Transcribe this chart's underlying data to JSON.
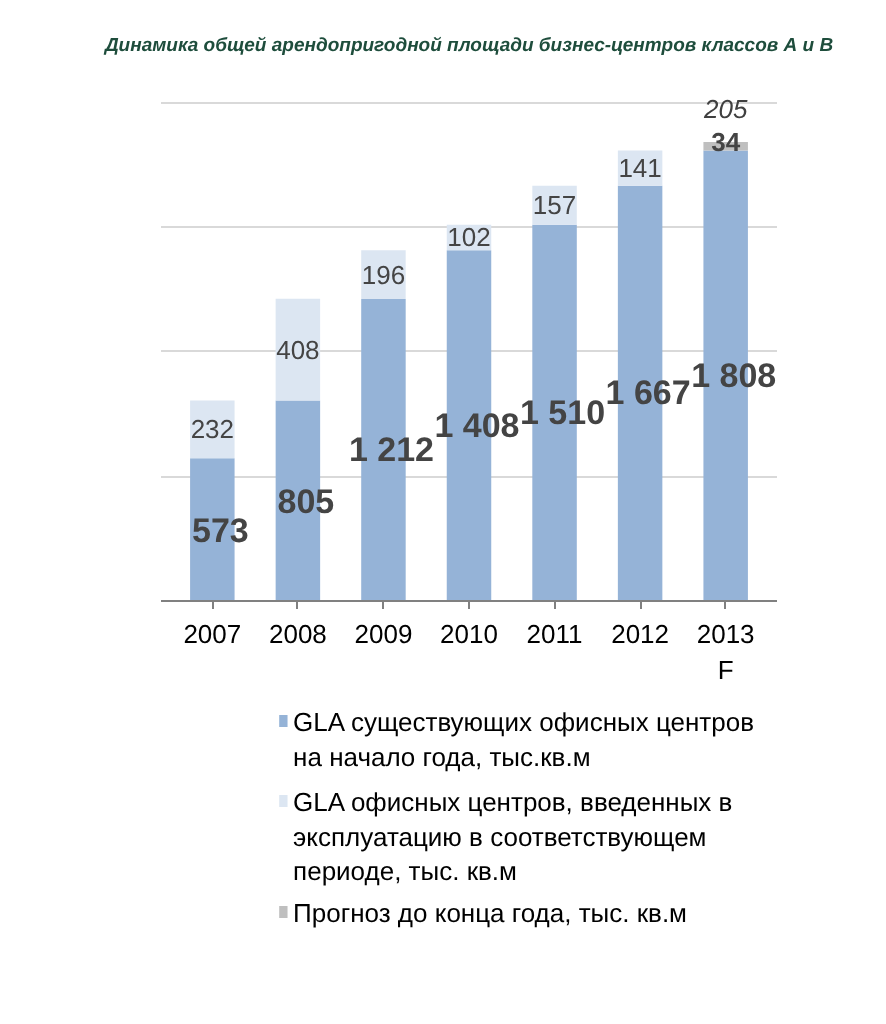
{
  "chart_data": {
    "type": "bar",
    "stacked": true,
    "title": "Динамика общей арендопригодной площади бизнес-центров классов А и В",
    "categories": [
      "2007",
      "2008",
      "2009",
      "2010",
      "2011",
      "2012",
      "2013\nF"
    ],
    "series": [
      {
        "name": "GLA существующих офисных центров на начало года, тыс.кв.м",
        "color": "#95b3d7",
        "values": [
          573,
          805,
          1212,
          1408,
          1510,
          1667,
          1808
        ],
        "value_labels": [
          "573",
          "805",
          "1 212",
          "1 408",
          "1 510",
          "1 667",
          "1 808"
        ]
      },
      {
        "name": "GLA офисных центров, введенных в эксплуатацию в соответствующем периоде, тыс. кв.м",
        "color": "#dce6f2",
        "values": [
          232,
          408,
          196,
          102,
          157,
          141,
          null
        ]
      },
      {
        "name": "Прогноз до конца года, тыс. кв.м",
        "color": "#bfbfbf",
        "values": [
          null,
          null,
          null,
          null,
          null,
          null,
          34
        ]
      }
    ],
    "annotations": [
      {
        "text": "205",
        "x": "2013\nF",
        "y": 1842
      }
    ],
    "data_labels": true,
    "grid": "y",
    "legend": "bottom"
  }
}
